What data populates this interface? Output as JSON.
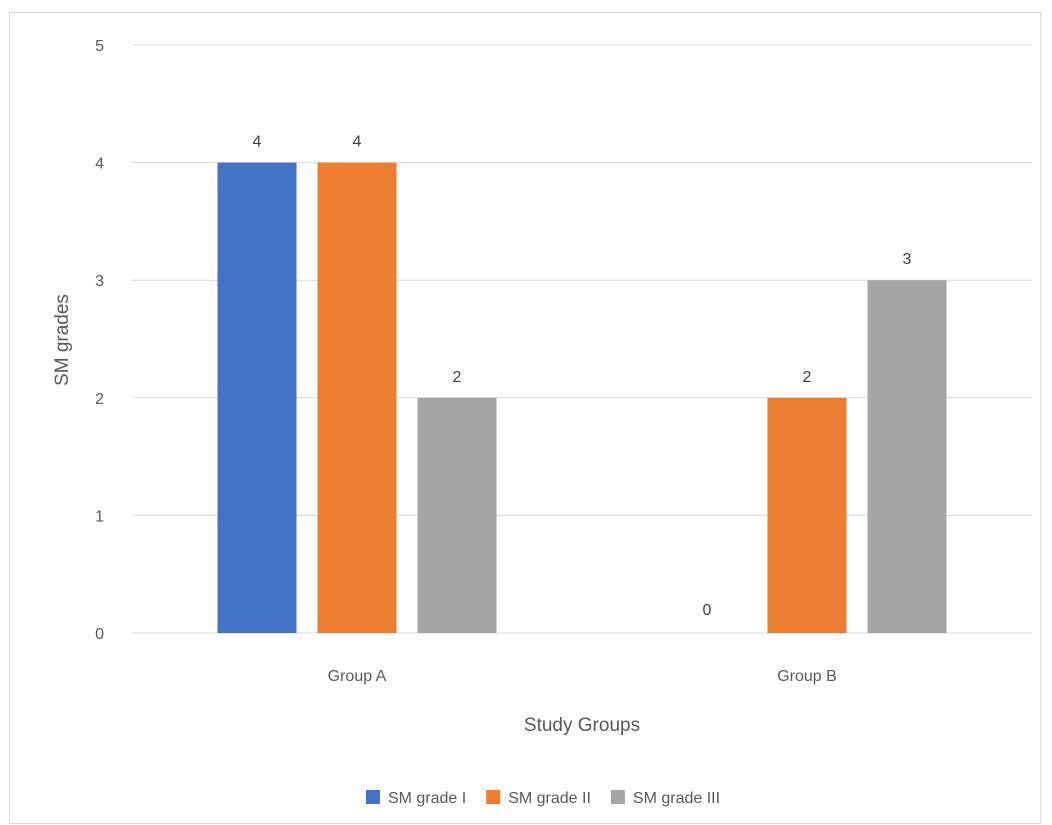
{
  "chart_data": {
    "type": "bar",
    "title": "",
    "xlabel": "Study Groups",
    "ylabel": "SM grades",
    "categories": [
      "Group A",
      "Group B"
    ],
    "series": [
      {
        "name": "SM grade I",
        "values": [
          4,
          0
        ],
        "color": "#4472c4"
      },
      {
        "name": "SM grade II",
        "values": [
          4,
          2
        ],
        "color": "#ed7d31"
      },
      {
        "name": "SM grade III",
        "values": [
          2,
          3
        ],
        "color": "#a5a5a5"
      }
    ],
    "ylim": [
      0,
      5
    ],
    "yticks": [
      0,
      1,
      2,
      3,
      4,
      5
    ],
    "data_labels": true,
    "grid": true,
    "legend_position": "bottom"
  }
}
